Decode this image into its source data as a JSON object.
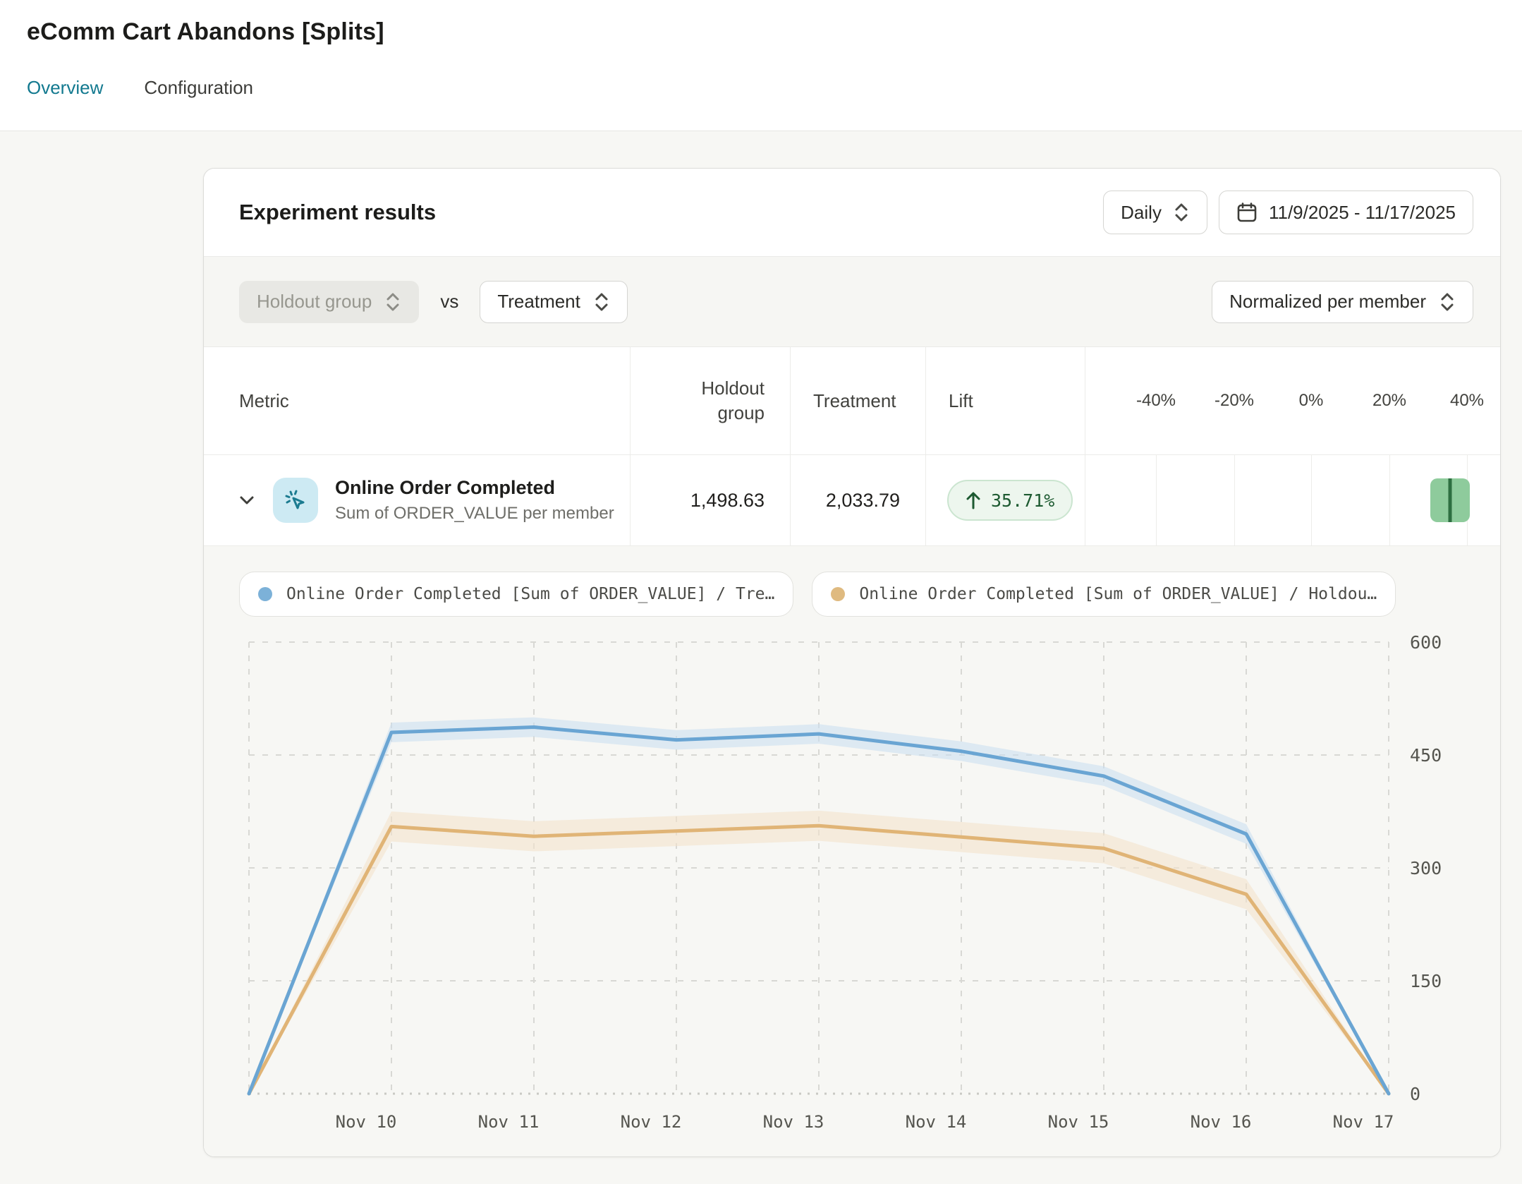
{
  "page": {
    "title": "eComm Cart Abandons [Splits]"
  },
  "tabs": [
    {
      "label": "Overview",
      "active": true
    },
    {
      "label": "Configuration",
      "active": false
    }
  ],
  "panel": {
    "title": "Experiment results",
    "granularity": "Daily",
    "date_range": "11/9/2025 - 11/17/2025",
    "compare": {
      "left": "Holdout group",
      "vs": "vs",
      "right": "Treatment"
    },
    "normalization": "Normalized per member"
  },
  "table": {
    "columns": [
      "Metric",
      "Holdout group",
      "Treatment",
      "Lift"
    ],
    "scale_ticks": [
      "-40%",
      "-20%",
      "0%",
      "20%",
      "40%"
    ],
    "rows": [
      {
        "metric": "Online Order Completed",
        "metric_sub": "Sum of ORDER_VALUE per member",
        "holdout_value": "1,498.63",
        "treatment_value": "2,033.79",
        "lift_label": "35.71%",
        "lift_direction": "up",
        "lift_value_pct": 35.71,
        "ci_low_pct": 30.6,
        "ci_high_pct": 40.8
      }
    ]
  },
  "legend": [
    {
      "label": "Online Order Completed [Sum of ORDER_VALUE] / Tre…",
      "color": "#7cb1d8"
    },
    {
      "label": "Online Order Completed [Sum of ORDER_VALUE] / Holdou…",
      "color": "#dfba80"
    }
  ],
  "chart_data": {
    "type": "line",
    "x": [
      "Nov 9",
      "Nov 10",
      "Nov 11",
      "Nov 12",
      "Nov 13",
      "Nov 14",
      "Nov 15",
      "Nov 16",
      "Nov 17"
    ],
    "x_tick_labels": [
      "Nov 10",
      "Nov 11",
      "Nov 12",
      "Nov 13",
      "Nov 14",
      "Nov 15",
      "Nov 16",
      "Nov 17"
    ],
    "series": [
      {
        "name": "Online Order Completed [Sum of ORDER_VALUE] / Treatment",
        "color": "#6aa5d3",
        "band_color": "#cbdff0",
        "band_halfwidth": 13,
        "values": [
          0,
          480,
          487,
          470,
          478,
          455,
          422,
          345,
          0
        ]
      },
      {
        "name": "Online Order Completed [Sum of ORDER_VALUE] / Holdout group",
        "color": "#e0b476",
        "band_color": "#f3e3cb",
        "band_halfwidth": 20,
        "values": [
          0,
          355,
          342,
          349,
          356,
          341,
          326,
          265,
          0
        ]
      }
    ],
    "ylim": [
      0,
      600
    ],
    "yticks": [
      0,
      150,
      300,
      450,
      600
    ],
    "xlabel": "",
    "ylabel": "",
    "grid": "dashed",
    "legend_position": "top"
  },
  "colors": {
    "accent_teal": "#12798f",
    "page_bg": "#f7f7f4",
    "card_border": "#dcdcd9",
    "grid_line": "#d8d8d4",
    "badge_bg": "#edf6ee",
    "badge_border": "#cbe5d0",
    "badge_text": "#1d5a31",
    "ci_marker": "#8ecb9c",
    "ci_center_line": "#2d6e40",
    "metric_icon_bg": "#cdeaf3",
    "metric_icon_stroke": "#1b7b90"
  }
}
